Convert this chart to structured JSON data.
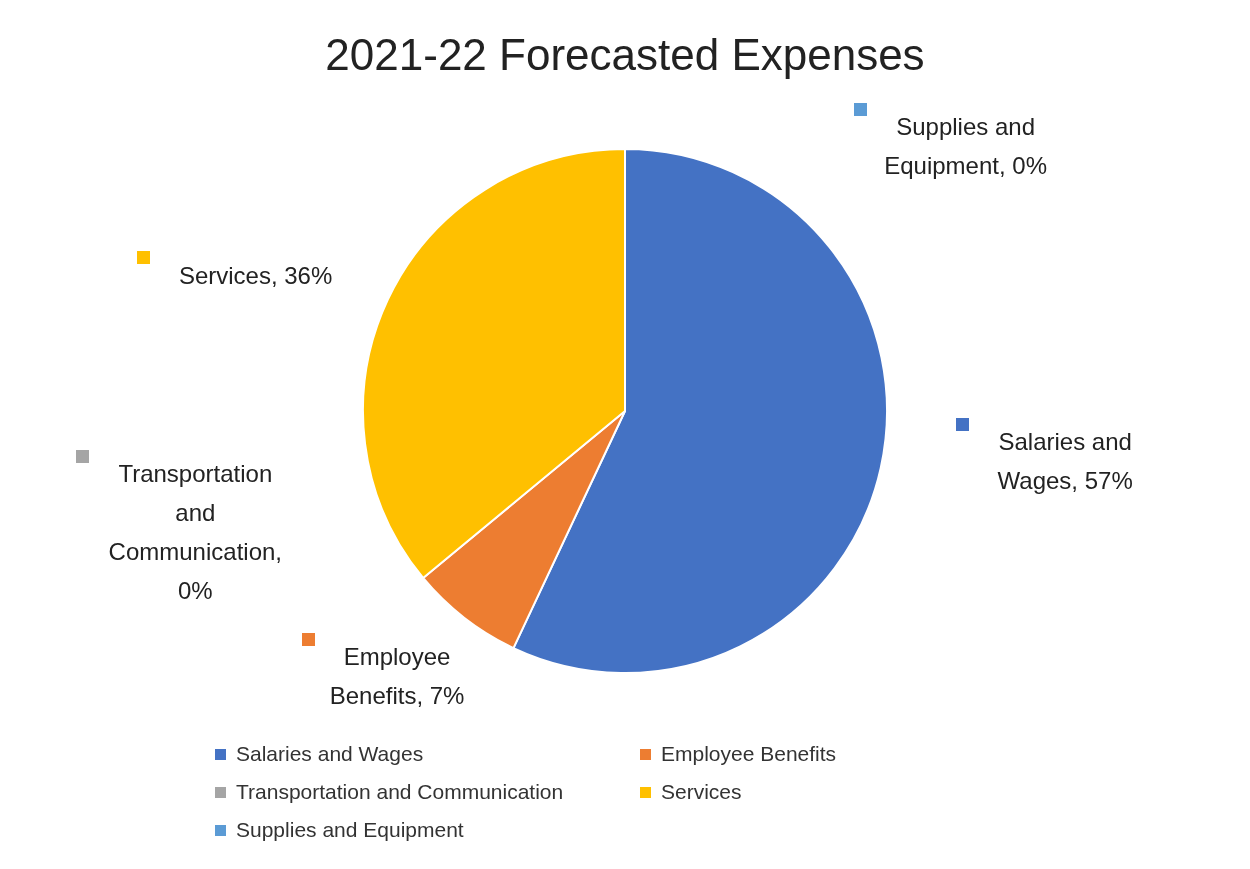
{
  "chart_data": {
    "type": "pie",
    "title": "2021-22 Forecasted Expenses",
    "categories": [
      "Salaries and Wages",
      "Employee Benefits",
      "Transportation and Communication",
      "Services",
      "Supplies and Equipment"
    ],
    "values": [
      57,
      7,
      0,
      36,
      0
    ],
    "value_labels": [
      "Salaries and Wages, 57%",
      "Employee Benefits, 7%",
      "Transportation and Communication, 0%",
      "Services, 36%",
      "Supplies and Equipment, 0%"
    ],
    "colors": [
      "#4472c4",
      "#ed7d31",
      "#a5a5a5",
      "#ffc000",
      "#5b9bd5"
    ],
    "legend": "bottom"
  }
}
